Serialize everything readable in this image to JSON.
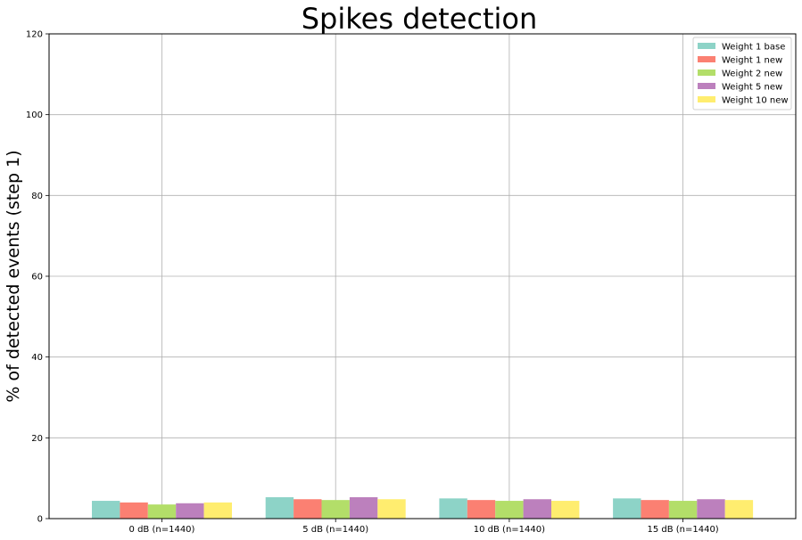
{
  "chart_data": {
    "type": "bar",
    "title": "Spikes detection",
    "xlabel": "",
    "ylabel": "% of detected events (step 1)",
    "categories": [
      "0 dB (n=1440)",
      "5 dB (n=1440)",
      "10 dB (n=1440)",
      "15 dB (n=1440)"
    ],
    "ylim": [
      0,
      120
    ],
    "yticks": [
      0,
      20,
      40,
      60,
      80,
      100,
      120
    ],
    "grid": true,
    "legend_position": "top-right",
    "series": [
      {
        "name": "Weight 1 base",
        "color": "#8dd3c7",
        "values": [
          4.4,
          5.3,
          5.0,
          5.0
        ]
      },
      {
        "name": "Weight 1 new",
        "color": "#fb8072",
        "values": [
          4.0,
          4.8,
          4.6,
          4.6
        ]
      },
      {
        "name": "Weight 2 new",
        "color": "#b3de69",
        "values": [
          3.5,
          4.6,
          4.4,
          4.4
        ]
      },
      {
        "name": "Weight 5 new",
        "color": "#bc80bd",
        "values": [
          3.8,
          5.3,
          4.8,
          4.8
        ]
      },
      {
        "name": "Weight 10 new",
        "color": "#ffed6f",
        "values": [
          4.0,
          4.8,
          4.4,
          4.6
        ]
      }
    ]
  }
}
